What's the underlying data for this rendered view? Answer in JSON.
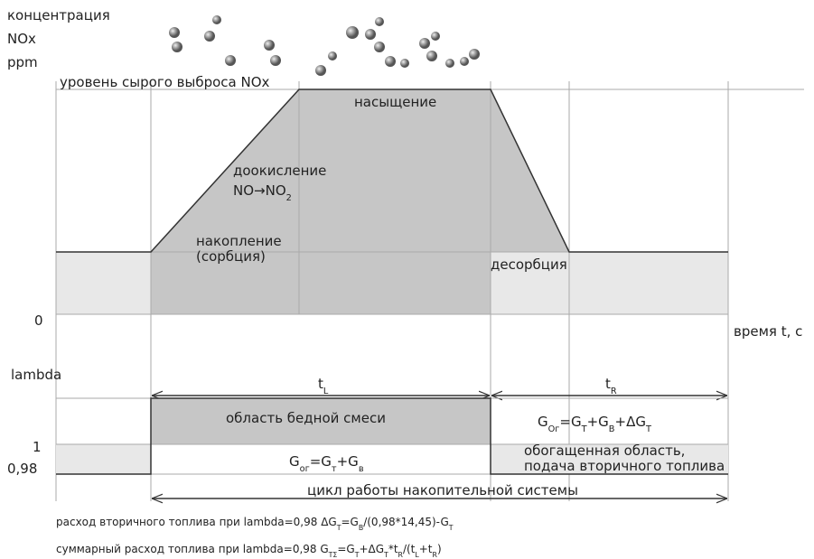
{
  "upper": {
    "axis_lines": [
      "концентрация",
      "NOx",
      "ppm"
    ],
    "zero": "0",
    "time_label": "время t, с",
    "raw_emission": "уровень сырого выброса NOx",
    "saturation": "насыщение",
    "oxidation": "доокисление",
    "reaction": [
      "NO",
      "→",
      "NO",
      {
        "text": "2",
        "sub": true
      }
    ],
    "accumulation": [
      "накопление",
      "(сорбция)"
    ],
    "desorption": "десорбция"
  },
  "t_L": [
    "t",
    {
      "text": "L",
      "sub": true
    }
  ],
  "t_R": [
    "t",
    {
      "text": "R",
      "sub": true
    }
  ],
  "lower": {
    "axis_label": "lambda",
    "one": "1",
    "rich_value": "0,98",
    "lean_area": "область бедной смеси",
    "lean_formula": [
      "G",
      {
        "text": "ог",
        "sub": true
      },
      "=G",
      {
        "text": "т",
        "sub": true
      },
      "+G",
      {
        "text": "в",
        "sub": true
      }
    ],
    "rich_formula": [
      "G",
      {
        "text": "Oг",
        "sub": true
      },
      "=G",
      {
        "text": "T",
        "sub": true
      },
      "+G",
      {
        "text": "B",
        "sub": true
      },
      "+ΔG",
      {
        "text": "T",
        "sub": true
      }
    ],
    "rich_area": [
      "обогащенная область,",
      "подача вторичного топлива"
    ],
    "cycle": "цикл работы накопительной системы"
  },
  "notes": [
    [
      "расход вторичного топлива при lambda=0,98  ΔG",
      {
        "text": "T",
        "sub": true
      },
      "=G",
      {
        "text": "B",
        "sub": true
      },
      "/(0,98*14,45)-G",
      {
        "text": "T",
        "sub": true
      }
    ],
    [
      "суммарный расход топлива при lambda=0,98  G",
      {
        "text": "TΣ",
        "sub": true
      },
      "=G",
      {
        "text": "T",
        "sub": true
      },
      "+ΔG",
      {
        "text": "T",
        "sub": true
      },
      "*t",
      {
        "text": "R",
        "sub": true
      },
      "/(t",
      {
        "text": "L",
        "sub": true
      },
      "+t",
      {
        "text": "R",
        "sub": true
      },
      ")"
    ]
  ]
}
